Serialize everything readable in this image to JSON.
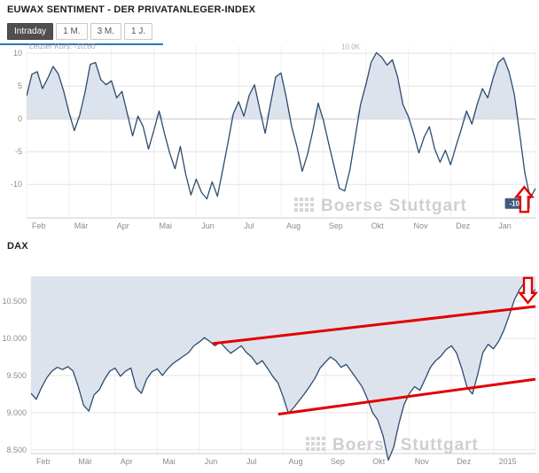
{
  "euwax": {
    "title": "EUWAX SENTIMENT - DER PRIVATANLEGER-INDEX",
    "last_price_label": "Letzter Kurs: -10,60"
  },
  "dax": {
    "title": "DAX"
  },
  "toolbar": {
    "buttons": [
      {
        "label": "Intraday",
        "active": true
      },
      {
        "label": "1 M.",
        "active": false
      },
      {
        "label": "3 M.",
        "active": false
      },
      {
        "label": "1 J.",
        "active": false
      }
    ]
  },
  "watermark": {
    "text": "Boerse Stuttgart"
  },
  "colors": {
    "line": "#2b4c6f",
    "fill": "#dde3ed",
    "annotation": "#e10000",
    "accent": "#2e76b6",
    "watermark": "#cfcfcf"
  },
  "chart_data": [
    {
      "type": "line",
      "title": "EUWAX SENTIMENT - DER PRIVATANLEGER-INDEX",
      "xlabel": "",
      "ylabel": "",
      "categories": [
        "Feb",
        "Mär",
        "Apr",
        "Mai",
        "Jun",
        "Jul",
        "Aug",
        "Sep",
        "Okt",
        "Nov",
        "Dez",
        "Jan"
      ],
      "values": [
        3.5,
        6.8,
        7.2,
        4.6,
        6.2,
        8.0,
        6.8,
        4.2,
        1.0,
        -1.8,
        0.5,
        4.0,
        8.3,
        8.6,
        6.0,
        5.2,
        5.8,
        3.2,
        4.2,
        0.8,
        -2.6,
        0.4,
        -1.2,
        -4.6,
        -1.8,
        1.2,
        -2.2,
        -5.2,
        -7.6,
        -4.2,
        -8.4,
        -11.6,
        -9.2,
        -11.2,
        -12.2,
        -9.6,
        -11.8,
        -7.8,
        -3.6,
        0.8,
        2.6,
        0.4,
        3.6,
        5.2,
        1.4,
        -2.2,
        2.2,
        6.4,
        7.0,
        3.2,
        -1.2,
        -4.2,
        -8.0,
        -5.4,
        -1.8,
        2.4,
        -0.2,
        -3.8,
        -7.2,
        -10.6,
        -11.0,
        -7.8,
        -2.8,
        2.2,
        5.2,
        8.6,
        10.1,
        9.4,
        8.2,
        9.0,
        6.4,
        2.2,
        0.4,
        -2.2,
        -5.2,
        -2.8,
        -1.2,
        -4.6,
        -6.6,
        -4.8,
        -7.0,
        -4.2,
        -1.6,
        1.2,
        -0.8,
        2.2,
        4.6,
        3.2,
        6.2,
        8.6,
        9.3,
        7.2,
        3.8,
        -2.2,
        -8.2,
        -12.1,
        -10.6
      ],
      "ylim": [
        -15.1,
        11.1
      ],
      "yticks": [
        10,
        5,
        0,
        -5,
        -10
      ],
      "ytick_labels": [
        "10",
        "5",
        "0",
        "-5",
        "-10"
      ],
      "grid": true,
      "legend": "none",
      "last_value": -10.6,
      "fill": "to-zero",
      "labels": [
        {
          "text": "10.0K",
          "x": 0.655,
          "y": 10.6,
          "anchor": "end"
        }
      ],
      "badges": [
        {
          "text": "-10,6",
          "x": 0.94,
          "y": -13.3
        }
      ],
      "annotations": [
        {
          "type": "block-arrow-up",
          "x": 0.978,
          "y": -10.4
        }
      ]
    },
    {
      "type": "line",
      "title": "DAX",
      "xlabel": "",
      "ylabel": "",
      "categories": [
        "Feb",
        "Mär",
        "Apr",
        "Mai",
        "Jun",
        "Jul",
        "Aug",
        "Sep",
        "Okt",
        "Nov",
        "Dez",
        "2015"
      ],
      "values": [
        9260,
        9180,
        9340,
        9470,
        9560,
        9610,
        9580,
        9620,
        9560,
        9350,
        9100,
        9020,
        9240,
        9310,
        9450,
        9560,
        9600,
        9490,
        9560,
        9600,
        9340,
        9260,
        9450,
        9550,
        9590,
        9500,
        9590,
        9660,
        9710,
        9760,
        9810,
        9900,
        9950,
        10010,
        9960,
        9900,
        9950,
        9870,
        9800,
        9850,
        9900,
        9810,
        9750,
        9650,
        9700,
        9600,
        9490,
        9400,
        9210,
        8990,
        9070,
        9160,
        9250,
        9350,
        9460,
        9600,
        9680,
        9750,
        9700,
        9610,
        9650,
        9550,
        9450,
        9350,
        9190,
        9000,
        8900,
        8690,
        8360,
        8530,
        8850,
        9110,
        9260,
        9350,
        9300,
        9450,
        9610,
        9700,
        9760,
        9850,
        9900,
        9800,
        9590,
        9340,
        9250,
        9510,
        9810,
        9920,
        9860,
        9960,
        10110,
        10310,
        10520,
        10660,
        10760,
        10580,
        10660
      ],
      "ylim": [
        8450,
        10835
      ],
      "yticks": [
        10500,
        10000,
        9500,
        9000,
        8500
      ],
      "ytick_labels": [
        "10.500",
        "10.000",
        "9.500",
        "9.000",
        "8.500"
      ],
      "grid": true,
      "legend": "none",
      "fill": "above-line",
      "annotations": [
        {
          "type": "trendline",
          "x1": 0.36,
          "y1": 9930,
          "x2": 1.0,
          "y2": 10430
        },
        {
          "type": "trendline",
          "x1": 0.49,
          "y1": 8980,
          "x2": 1.0,
          "y2": 9450
        },
        {
          "type": "block-arrow-down",
          "x": 0.985,
          "y": 10480
        }
      ]
    }
  ]
}
